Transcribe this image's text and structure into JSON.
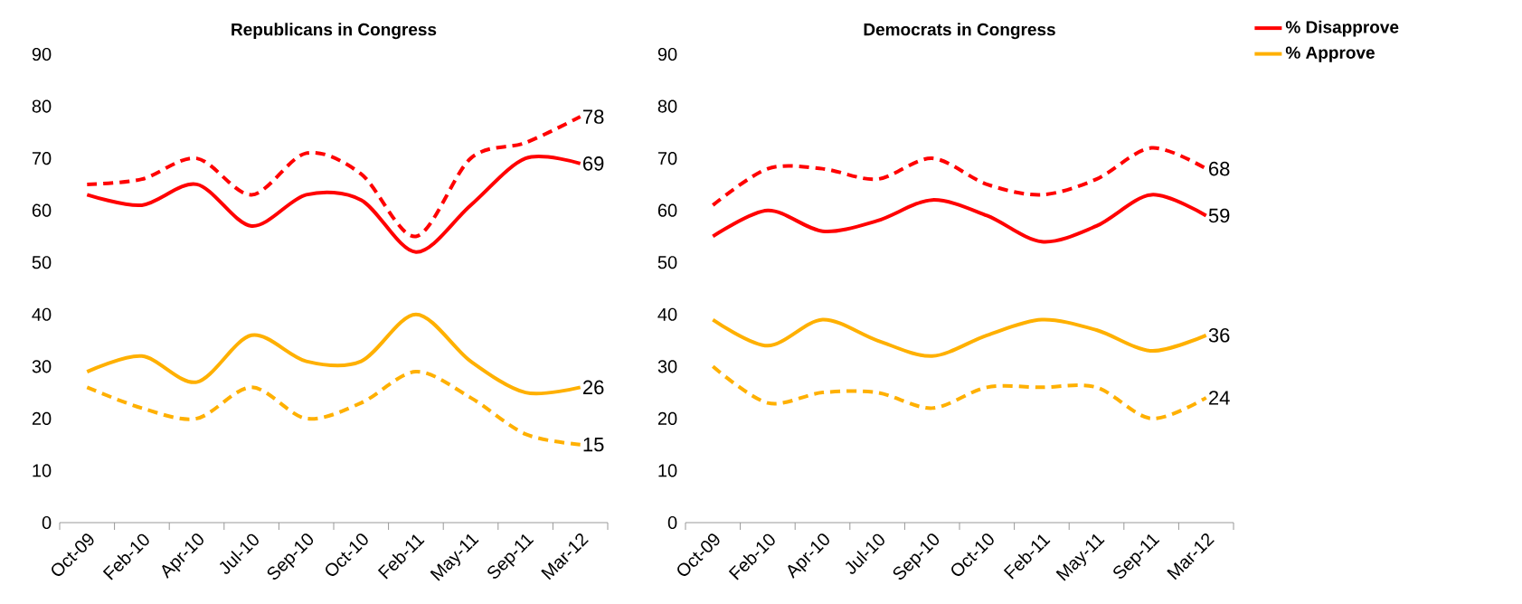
{
  "chart_data": [
    {
      "type": "line",
      "title": "Republicans in Congress",
      "categories": [
        "Oct-09",
        "Feb-10",
        "Apr-10",
        "Jul-10",
        "Sep-10",
        "Oct-10",
        "Feb-11",
        "May-11",
        "Sep-11",
        "Mar-12"
      ],
      "ylim": [
        0,
        90
      ],
      "yticks": [
        0,
        10,
        20,
        30,
        40,
        50,
        60,
        70,
        80,
        90
      ],
      "legend": false,
      "series": [
        {
          "color": "#ff0000",
          "line_style": "dashed",
          "values": [
            65,
            66,
            70,
            63,
            71,
            67,
            55,
            70,
            73,
            78
          ],
          "value_labels": [
            null,
            null,
            null,
            null,
            null,
            null,
            null,
            null,
            null,
            "78"
          ]
        },
        {
          "color": "#ff0000",
          "line_style": "solid",
          "values": [
            63,
            61,
            65,
            57,
            63,
            62,
            52,
            61,
            70,
            69
          ],
          "value_labels": [
            null,
            null,
            null,
            null,
            null,
            null,
            null,
            null,
            null,
            "69"
          ]
        },
        {
          "color": "#ffb000",
          "line_style": "solid",
          "values": [
            29,
            32,
            27,
            36,
            31,
            31,
            40,
            31,
            25,
            26
          ],
          "value_labels": [
            null,
            null,
            null,
            null,
            null,
            null,
            null,
            null,
            null,
            "26"
          ]
        },
        {
          "color": "#ffb000",
          "line_style": "dashed",
          "values": [
            26,
            22,
            20,
            26,
            20,
            23,
            29,
            24,
            17,
            15
          ],
          "value_labels": [
            null,
            null,
            null,
            null,
            null,
            null,
            null,
            null,
            null,
            "15"
          ]
        }
      ]
    },
    {
      "type": "line",
      "title": "Democrats in Congress",
      "categories": [
        "Oct-09",
        "Feb-10",
        "Apr-10",
        "Jul-10",
        "Sep-10",
        "Oct-10",
        "Feb-11",
        "May-11",
        "Sep-11",
        "Mar-12"
      ],
      "ylim": [
        0,
        90
      ],
      "yticks": [
        0,
        10,
        20,
        30,
        40,
        50,
        60,
        70,
        80,
        90
      ],
      "legend": "right",
      "series": [
        {
          "name": "% Disapprove",
          "color": "#ff0000",
          "line_style": "solid",
          "values": [
            55,
            60,
            56,
            58,
            62,
            59,
            54,
            57,
            63,
            59
          ],
          "value_labels": [
            null,
            null,
            null,
            null,
            null,
            null,
            null,
            null,
            null,
            "59"
          ]
        },
        {
          "name": "% Approve",
          "color": "#ffb000",
          "line_style": "solid",
          "values": [
            39,
            34,
            39,
            35,
            32,
            36,
            39,
            37,
            33,
            36
          ],
          "value_labels": [
            null,
            null,
            null,
            null,
            null,
            null,
            null,
            null,
            null,
            "36"
          ]
        },
        {
          "color": "#ff0000",
          "line_style": "dashed",
          "values": [
            61,
            68,
            68,
            66,
            70,
            65,
            63,
            66,
            72,
            68
          ],
          "value_labels": [
            null,
            null,
            null,
            null,
            null,
            null,
            null,
            null,
            null,
            "68"
          ]
        },
        {
          "color": "#ffb000",
          "line_style": "dashed",
          "values": [
            30,
            23,
            25,
            25,
            22,
            26,
            26,
            26,
            20,
            24
          ],
          "value_labels": [
            null,
            null,
            null,
            null,
            null,
            null,
            null,
            null,
            null,
            "24"
          ]
        }
      ]
    }
  ]
}
